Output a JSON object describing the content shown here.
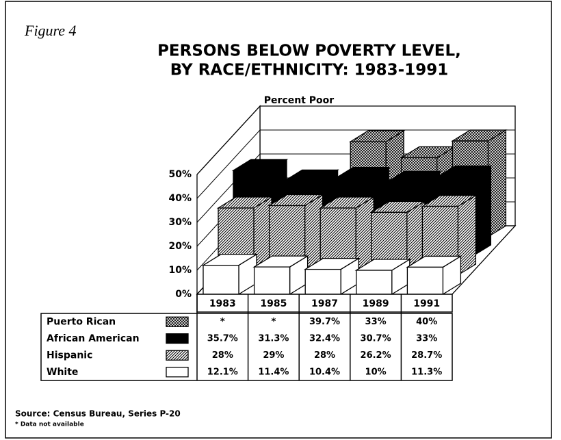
{
  "figure_label": "Figure 4",
  "chart_data": {
    "type": "bar3d",
    "title": [
      "PERSONS BELOW POVERTY LEVEL,",
      "BY RACE/ETHNICITY: 1983-1991"
    ],
    "y_label": "Percent Poor",
    "categories": [
      "1983",
      "1985",
      "1987",
      "1989",
      "1991"
    ],
    "series": [
      {
        "name": "Puerto Rican",
        "color": "#000000",
        "pattern": "crosshatch",
        "values": [
          null,
          null,
          39.7,
          33,
          40
        ],
        "value_labels": [
          "*",
          "*",
          "39.7%",
          "33%",
          "40%"
        ]
      },
      {
        "name": "African American",
        "color": "#000000",
        "pattern": "solid",
        "values": [
          35.7,
          31.3,
          32.4,
          30.7,
          33
        ],
        "value_labels": [
          "35.7%",
          "31.3%",
          "32.4%",
          "30.7%",
          "33%"
        ]
      },
      {
        "name": "Hispanic",
        "color": "#000000",
        "pattern": "diagonal",
        "values": [
          28,
          29,
          28,
          26.2,
          28.7
        ],
        "value_labels": [
          "28%",
          "29%",
          "28%",
          "26.2%",
          "28.7%"
        ]
      },
      {
        "name": "White",
        "color": "#ffffff",
        "pattern": "solid",
        "values": [
          12.1,
          11.4,
          10.4,
          10,
          11.3
        ],
        "value_labels": [
          "12.1%",
          "11.4%",
          "10.4%",
          "10%",
          "11.3%"
        ]
      }
    ],
    "ylim": [
      0,
      50
    ],
    "yticks": [
      {
        "value": 0,
        "label": "0%"
      },
      {
        "value": 10,
        "label": "10%"
      },
      {
        "value": 20,
        "label": "20%"
      },
      {
        "value": 30,
        "label": "30%"
      },
      {
        "value": 40,
        "label": "40%"
      },
      {
        "value": 50,
        "label": "50%"
      }
    ],
    "grid": true
  },
  "source": "Source: Census Bureau, Series P-20",
  "note": "* Data not available"
}
